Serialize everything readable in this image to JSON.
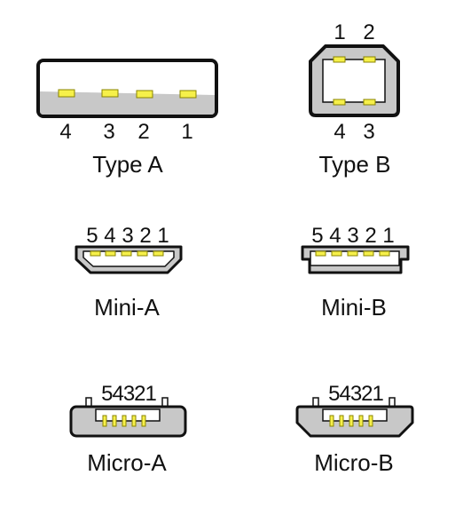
{
  "colors": {
    "outline": "#111111",
    "body_fill": "#c8c8c8",
    "cavity_fill": "#ffffff",
    "contact_fill": "#f6f04a",
    "contact_stroke": "#8a8400"
  },
  "connectors": {
    "type_a": {
      "name": "Type A",
      "pins": [
        "4",
        "3",
        "2",
        "1"
      ]
    },
    "type_b": {
      "name": "Type B",
      "pins_top": [
        "1",
        "2"
      ],
      "pins_bottom": [
        "4",
        "3"
      ]
    },
    "mini_a": {
      "name": "Mini-A",
      "pins": "5 4 3 2 1"
    },
    "mini_b": {
      "name": "Mini-B",
      "pins": "5 4 3 2 1"
    },
    "micro_a": {
      "name": "Micro-A",
      "pins": "54321"
    },
    "micro_b": {
      "name": "Micro-B",
      "pins": "54321"
    }
  }
}
